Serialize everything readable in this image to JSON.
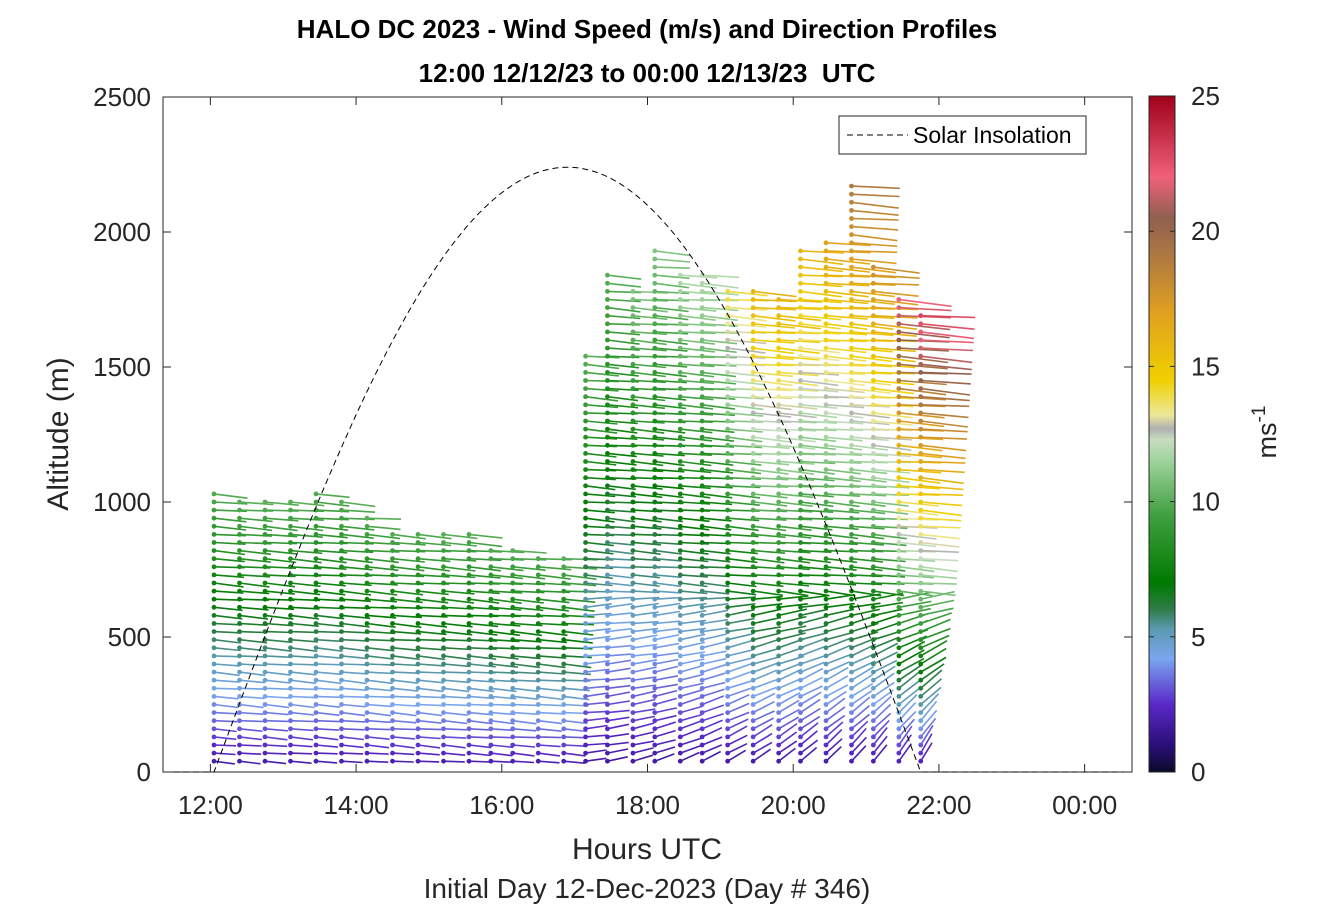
{
  "chart_data": {
    "type": "wind-barb-profile",
    "title": "HALO DC 2023 - Wind Speed (m/s) and Direction Profiles",
    "subtitle": "12:00 12/12/23 to 00:00 12/13/23  UTC",
    "xlabel": "Hours UTC",
    "ylabel": "Altitude (m)",
    "footer": "Initial Day 12-Dec-2023 (Day # 346)",
    "xlim": [
      11.35,
      24.65
    ],
    "ylim": [
      0,
      2500
    ],
    "xticks": [
      12,
      14,
      16,
      18,
      20,
      22,
      24
    ],
    "xtick_labels": [
      "12:00",
      "14:00",
      "16:00",
      "18:00",
      "20:00",
      "22:00",
      "00:00"
    ],
    "yticks": [
      0,
      500,
      1000,
      1500,
      2000,
      2500
    ],
    "ytick_labels": [
      "0",
      "500",
      "1000",
      "1500",
      "2000",
      "2500"
    ],
    "legend": {
      "label": "Solar Insolation",
      "position": "top-right",
      "style": "dashed",
      "color": "#000000"
    },
    "colorbar": {
      "label_base": "ms",
      "label_exp": "-1",
      "range": [
        0,
        25
      ],
      "ticks": [
        0,
        5,
        10,
        15,
        20,
        25
      ],
      "tick_labels": [
        "0",
        "5",
        "10",
        "15",
        "20",
        "25"
      ],
      "colors": [
        {
          "v": 0,
          "c": "#0a0a2a"
        },
        {
          "v": 1,
          "c": "#2a0f7a"
        },
        {
          "v": 2.5,
          "c": "#5a28c8"
        },
        {
          "v": 4.2,
          "c": "#7aa6f0"
        },
        {
          "v": 5.3,
          "c": "#5a9ab0"
        },
        {
          "v": 6,
          "c": "#2f7d4a"
        },
        {
          "v": 7,
          "c": "#007a00"
        },
        {
          "v": 9.5,
          "c": "#40a040"
        },
        {
          "v": 11.5,
          "c": "#9fd39c"
        },
        {
          "v": 12.3,
          "c": "#c8ddc0"
        },
        {
          "v": 12.7,
          "c": "#b0b0b0"
        },
        {
          "v": 13.2,
          "c": "#ede89a"
        },
        {
          "v": 14.5,
          "c": "#f0d000"
        },
        {
          "v": 17,
          "c": "#e0a020"
        },
        {
          "v": 19,
          "c": "#b07a40"
        },
        {
          "v": 20.5,
          "c": "#906050"
        },
        {
          "v": 22,
          "c": "#f0607a"
        },
        {
          "v": 25,
          "c": "#a0001a"
        }
      ]
    },
    "solar_insolation": {
      "sunrise_hour": 12.05,
      "sunset_hour": 21.75,
      "peak_hour": 16.9,
      "peak_altitude_m": 2240
    },
    "profiles": [
      {
        "hour": 12.05,
        "top_m": 1050,
        "max_speed_ms": 10
      },
      {
        "hour": 12.4,
        "top_m": 1000,
        "max_speed_ms": 10
      },
      {
        "hour": 12.75,
        "top_m": 1000,
        "max_speed_ms": 10
      },
      {
        "hour": 13.1,
        "top_m": 1000,
        "max_speed_ms": 10
      },
      {
        "hour": 13.45,
        "top_m": 1050,
        "max_speed_ms": 10
      },
      {
        "hour": 13.8,
        "top_m": 1000,
        "max_speed_ms": 10
      },
      {
        "hour": 14.15,
        "top_m": 940,
        "max_speed_ms": 10
      },
      {
        "hour": 14.5,
        "top_m": 900,
        "max_speed_ms": 10
      },
      {
        "hour": 14.85,
        "top_m": 900,
        "max_speed_ms": 10
      },
      {
        "hour": 15.2,
        "top_m": 880,
        "max_speed_ms": 10
      },
      {
        "hour": 15.55,
        "top_m": 900,
        "max_speed_ms": 10
      },
      {
        "hour": 15.85,
        "top_m": 840,
        "max_speed_ms": 10
      },
      {
        "hour": 16.15,
        "top_m": 820,
        "max_speed_ms": 10
      },
      {
        "hour": 16.5,
        "top_m": 810,
        "max_speed_ms": 10
      },
      {
        "hour": 16.85,
        "top_m": 790,
        "max_speed_ms": 10
      },
      {
        "hour": 17.15,
        "top_m": 1540,
        "max_speed_ms": 10
      },
      {
        "hour": 17.45,
        "top_m": 1840,
        "max_speed_ms": 10
      },
      {
        "hour": 17.8,
        "top_m": 1800,
        "max_speed_ms": 11
      },
      {
        "hour": 18.1,
        "top_m": 1950,
        "max_speed_ms": 11
      },
      {
        "hour": 18.45,
        "top_m": 1860,
        "max_speed_ms": 12
      },
      {
        "hour": 18.75,
        "top_m": 1850,
        "max_speed_ms": 12
      },
      {
        "hour": 19.1,
        "top_m": 1780,
        "max_speed_ms": 14
      },
      {
        "hour": 19.45,
        "top_m": 1780,
        "max_speed_ms": 16
      },
      {
        "hour": 19.8,
        "top_m": 1760,
        "max_speed_ms": 16
      },
      {
        "hour": 20.1,
        "top_m": 1950,
        "max_speed_ms": 16
      },
      {
        "hour": 20.45,
        "top_m": 1980,
        "max_speed_ms": 17
      },
      {
        "hour": 20.8,
        "top_m": 2170,
        "max_speed_ms": 19
      },
      {
        "hour": 21.1,
        "top_m": 1880,
        "max_speed_ms": 18
      },
      {
        "hour": 21.45,
        "top_m": 1750,
        "max_speed_ms": 22
      },
      {
        "hour": 21.75,
        "top_m": 1700,
        "max_speed_ms": 23
      }
    ],
    "grid": false
  }
}
